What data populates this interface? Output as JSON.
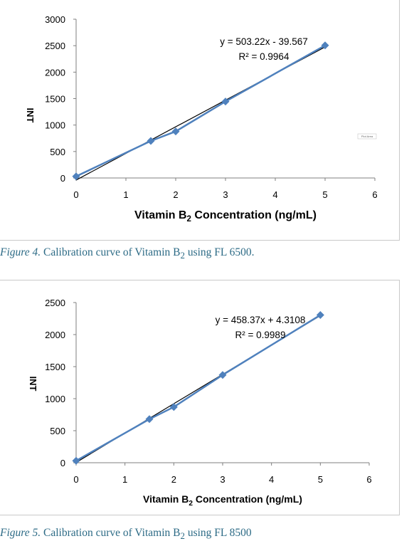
{
  "charts_meta": {
    "axis_line_color": "#7f7f7f",
    "marker_color": "#4f81bd",
    "trend_color": "#000000",
    "caption_color": "#2d6b86"
  },
  "chart_data": [
    {
      "type": "scatter",
      "title": "",
      "xlabel_prefix": "Vitamin B",
      "xlabel_sub": "2",
      "xlabel_suffix": " Concentration (ng/mL)",
      "ylabel": "INT",
      "xlim": [
        0,
        6
      ],
      "ylim": [
        0,
        3000
      ],
      "xticks": [
        "0",
        "1",
        "2",
        "3",
        "4",
        "5",
        "6"
      ],
      "yticks": [
        "0",
        "500",
        "1000",
        "1500",
        "2000",
        "2500",
        "3000"
      ],
      "series": [
        {
          "x": [
            0,
            1.5,
            2,
            3,
            5
          ],
          "y": [
            30,
            700,
            880,
            1445,
            2505
          ]
        }
      ],
      "trendline": {
        "slope": 503.22,
        "intercept": -39.567
      },
      "equation": "y = 503.22x - 39.567",
      "r2": "R² = 0.9964",
      "annotation": "Plot Area",
      "grid": false
    },
    {
      "type": "scatter",
      "title": "",
      "xlabel_prefix": "Vitamin B",
      "xlabel_sub": "2",
      "xlabel_suffix": " Concentration (ng/mL)",
      "ylabel": "INT",
      "xlim": [
        0,
        6
      ],
      "ylim": [
        0,
        2500
      ],
      "xticks": [
        "0",
        "1",
        "2",
        "3",
        "4",
        "5",
        "6"
      ],
      "yticks": [
        "0",
        "500",
        "1000",
        "1500",
        "2000",
        "2500"
      ],
      "series": [
        {
          "x": [
            0,
            1.5,
            2,
            3,
            5
          ],
          "y": [
            30,
            680,
            870,
            1370,
            2305
          ]
        }
      ],
      "trendline": {
        "slope": 458.37,
        "intercept": 4.3108
      },
      "equation": "y = 458.37x + 4.3108",
      "r2": "R² = 0.9989",
      "annotation": "",
      "grid": false
    }
  ],
  "captions": [
    {
      "fig": "Figure 4.",
      "text": " Calibration curve of Vitamin B",
      "sub": "2",
      "rest": " using FL 6500."
    },
    {
      "fig": "Figure 5.",
      "text": " Calibration curve of Vitamin B",
      "sub": "2",
      "rest": " using FL 8500"
    }
  ]
}
